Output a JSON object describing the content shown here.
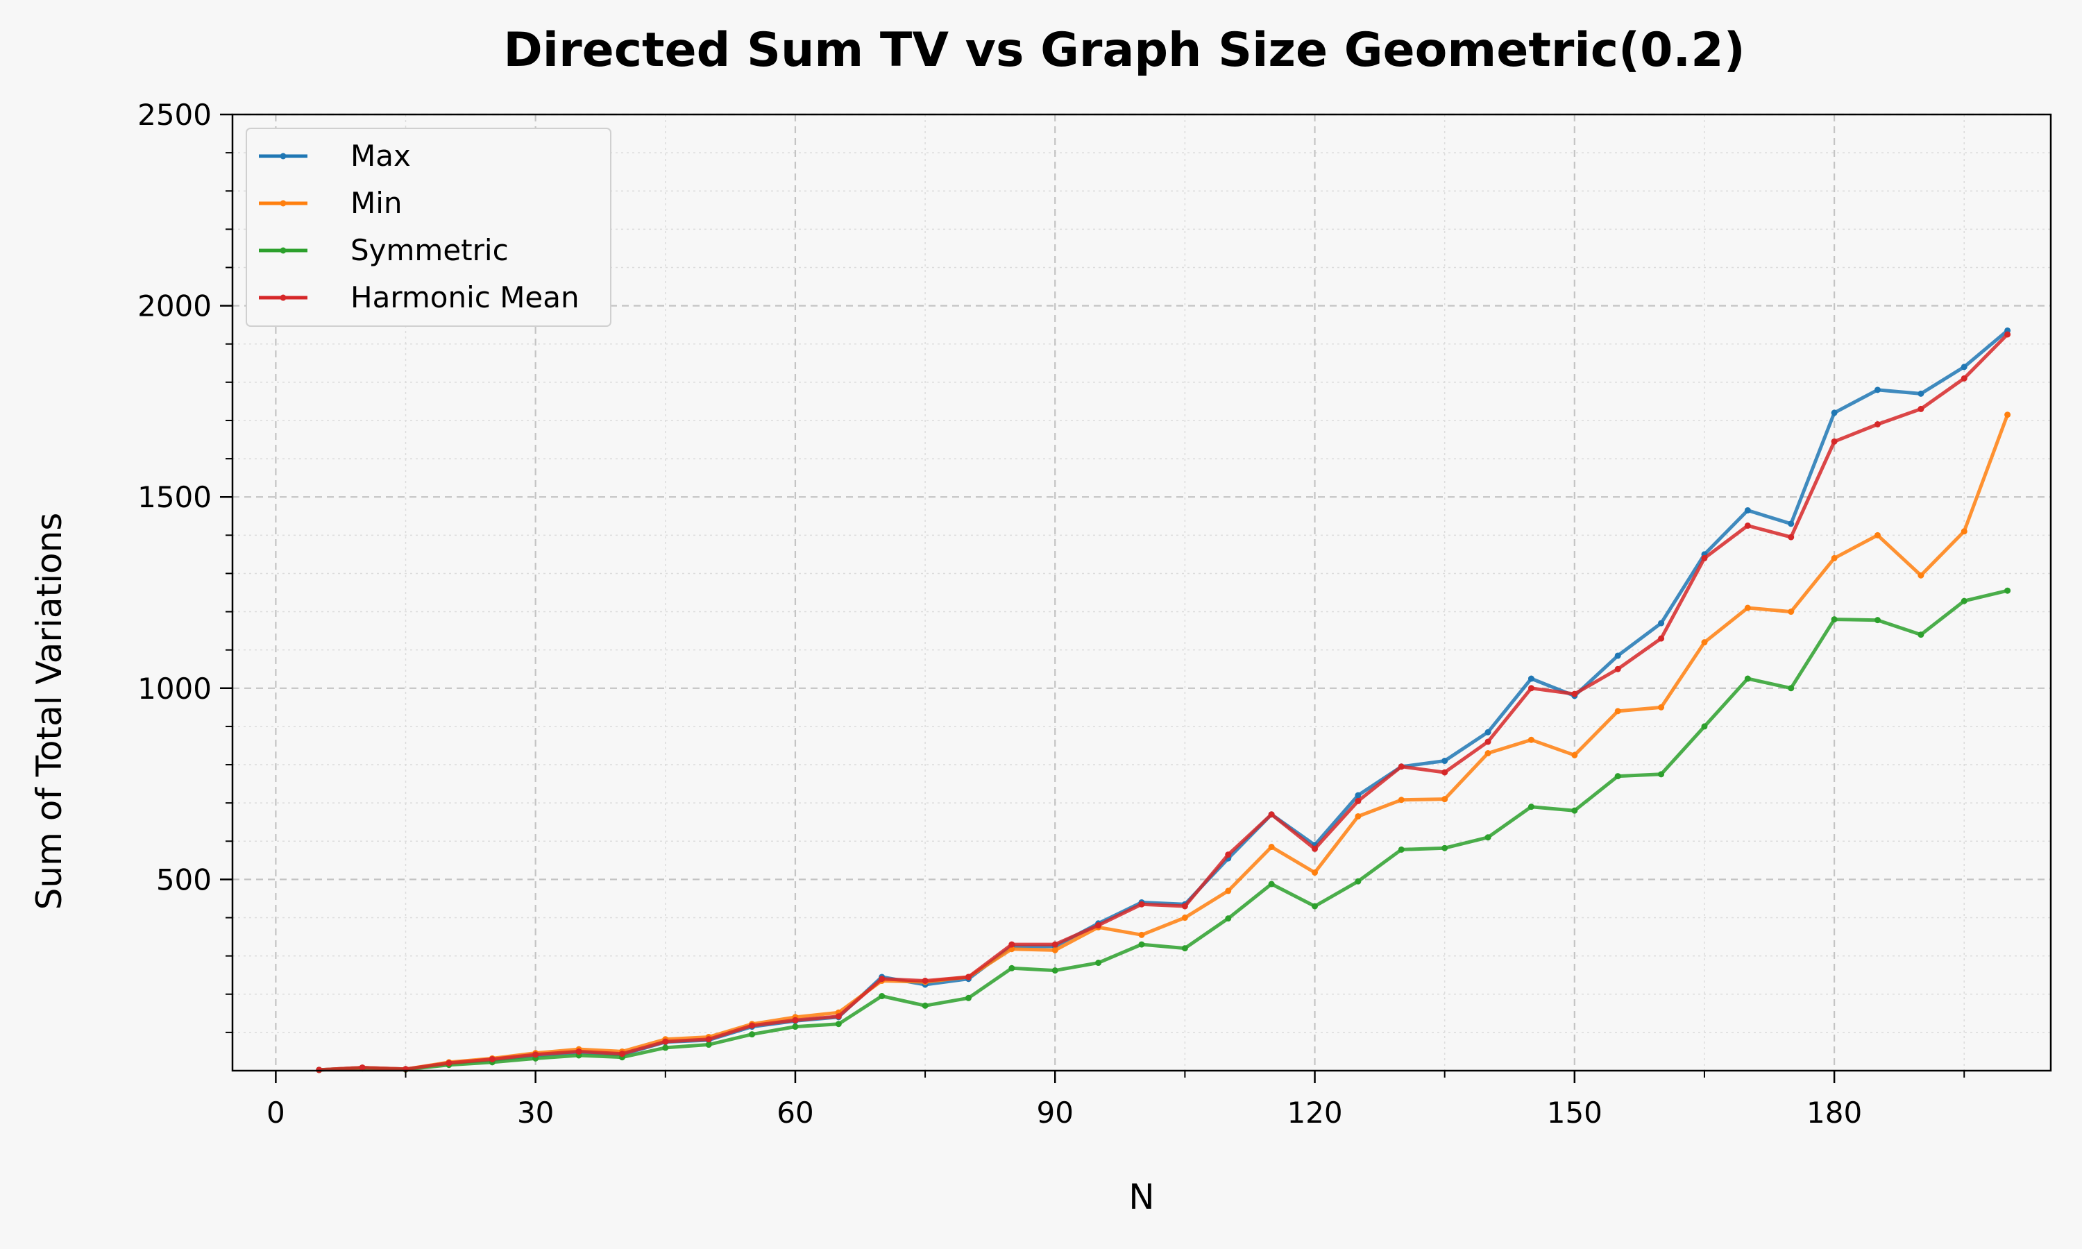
{
  "chart_data": {
    "type": "line",
    "title": "Directed Sum TV vs Graph Size Geometric(0.2)",
    "xlabel": "N",
    "ylabel": "Sum of Total Variations",
    "xlim": [
      -5,
      205
    ],
    "ylim": [
      0,
      2500
    ],
    "xticks": [
      0,
      30,
      60,
      90,
      120,
      150,
      180
    ],
    "yticks": [
      500,
      1000,
      1500,
      2000,
      2500
    ],
    "grid": true,
    "legend_position": "top-left",
    "x": [
      5,
      10,
      15,
      20,
      25,
      30,
      35,
      40,
      45,
      50,
      55,
      60,
      65,
      70,
      75,
      80,
      85,
      90,
      95,
      100,
      105,
      110,
      115,
      120,
      125,
      130,
      135,
      140,
      145,
      150,
      155,
      160,
      165,
      170,
      175,
      180,
      185,
      190,
      195,
      200
    ],
    "series": [
      {
        "name": "Max",
        "color": "#1f77b4",
        "values": [
          2,
          8,
          4,
          20,
          28,
          40,
          48,
          42,
          75,
          80,
          115,
          130,
          140,
          245,
          225,
          240,
          325,
          325,
          385,
          440,
          435,
          555,
          670,
          590,
          720,
          795,
          810,
          885,
          1025,
          980,
          1085,
          1170,
          1350,
          1465,
          1430,
          1720,
          1780,
          1770,
          1840,
          1935
        ]
      },
      {
        "name": "Min",
        "color": "#ff7f0e",
        "values": [
          2,
          8,
          4,
          22,
          32,
          46,
          56,
          50,
          82,
          88,
          122,
          140,
          152,
          235,
          232,
          245,
          318,
          315,
          375,
          355,
          400,
          470,
          585,
          518,
          665,
          708,
          710,
          830,
          865,
          825,
          940,
          950,
          1120,
          1210,
          1200,
          1340,
          1400,
          1295,
          1410,
          1715
        ]
      },
      {
        "name": "Symmetric",
        "color": "#2ca02c",
        "values": [
          2,
          6,
          3,
          15,
          22,
          32,
          40,
          35,
          60,
          68,
          95,
          115,
          122,
          195,
          170,
          190,
          268,
          262,
          282,
          330,
          320,
          398,
          488,
          430,
          495,
          578,
          582,
          610,
          690,
          680,
          770,
          775,
          900,
          1025,
          1000,
          1180,
          1178,
          1140,
          1228,
          1255
        ]
      },
      {
        "name": "Harmonic Mean",
        "color": "#d62728",
        "values": [
          2,
          8,
          4,
          20,
          30,
          42,
          50,
          44,
          76,
          82,
          118,
          132,
          142,
          240,
          235,
          245,
          330,
          330,
          380,
          435,
          430,
          565,
          670,
          580,
          705,
          795,
          780,
          860,
          1000,
          985,
          1050,
          1130,
          1340,
          1425,
          1395,
          1645,
          1690,
          1730,
          1810,
          1925
        ]
      }
    ]
  }
}
